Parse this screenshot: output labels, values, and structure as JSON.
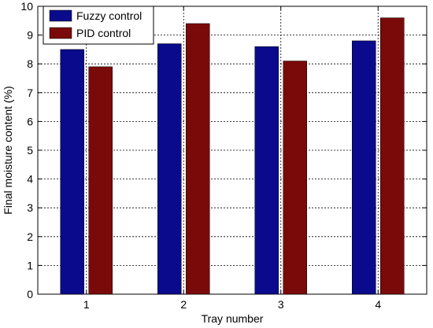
{
  "chart_data": {
    "type": "bar",
    "xlabel": "Tray number",
    "ylabel": "Final moisture content (%)",
    "categories": [
      "1",
      "2",
      "3",
      "4"
    ],
    "ylim": [
      0,
      10
    ],
    "yticks": [
      0,
      1,
      2,
      3,
      4,
      5,
      6,
      7,
      8,
      9,
      10
    ],
    "grid": true,
    "legend_position": "top-left",
    "series": [
      {
        "name": "Fuzzy control",
        "values": [
          8.5,
          8.7,
          8.6,
          8.8
        ],
        "color": "#0a0a8c"
      },
      {
        "name": "PID control",
        "values": [
          7.9,
          9.4,
          8.1,
          9.6
        ],
        "color": "#7a0a0a"
      }
    ]
  }
}
